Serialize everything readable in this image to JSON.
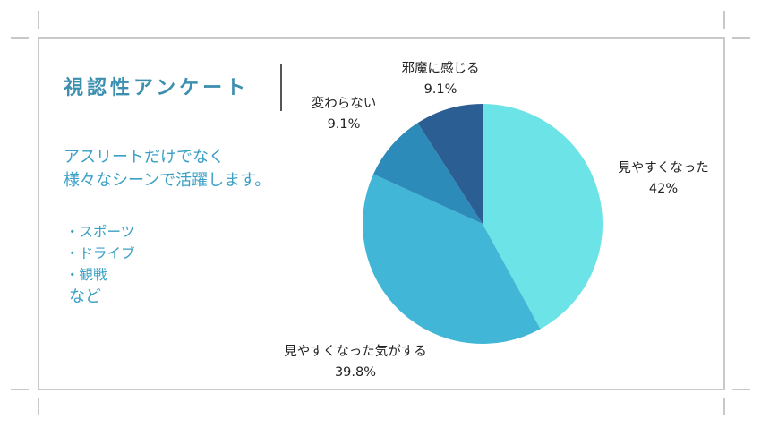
{
  "colors": {
    "text_accent": "#3aa0c4",
    "title": "#3d8fb0"
  },
  "header": {
    "title": "視認性アンケート"
  },
  "description": {
    "lines": [
      "アスリートだけでなく",
      "様々なシーンで活躍します。"
    ]
  },
  "uses": {
    "items": [
      "・スポーツ",
      "・ドライブ",
      "・観戦"
    ],
    "more": "など"
  },
  "chart_data": {
    "type": "pie",
    "title": "視認性アンケート",
    "slices": [
      {
        "label": "見やすくなった",
        "value": 42,
        "value_label": "42%",
        "color": "#6be3e7"
      },
      {
        "label": "見やすくなった気がする",
        "value": 39.8,
        "value_label": "39.8%",
        "color": "#41b6d6"
      },
      {
        "label": "変わらない",
        "value": 9.1,
        "value_label": "9.1%",
        "color": "#2d8bb9"
      },
      {
        "label": "邪魔に感じる",
        "value": 9.1,
        "value_label": "9.1%",
        "color": "#2b5e93"
      }
    ]
  }
}
